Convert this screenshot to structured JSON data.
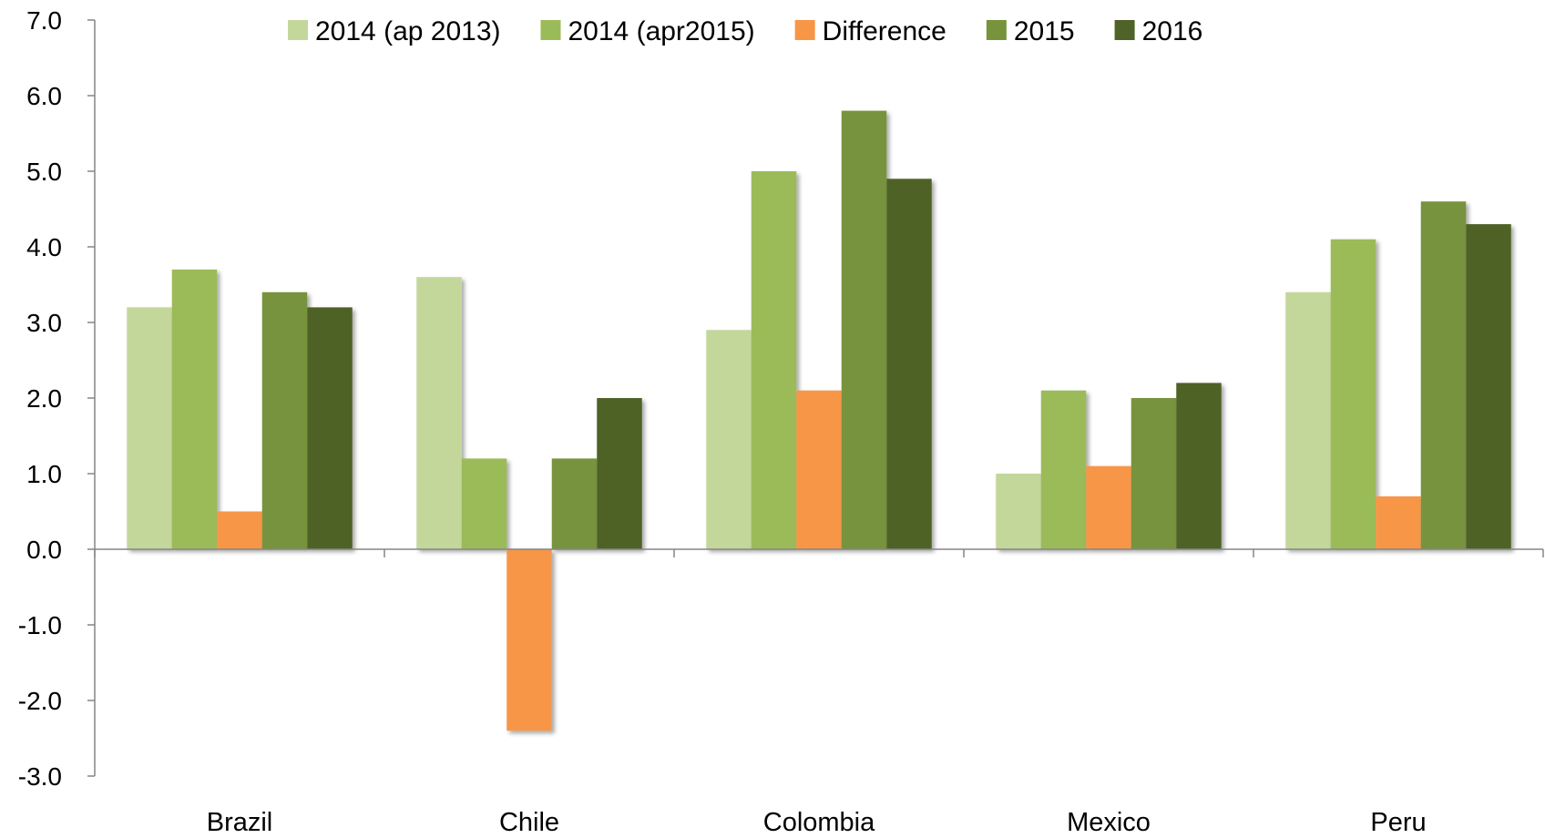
{
  "chart_data": {
    "type": "bar",
    "title": "",
    "xlabel": "",
    "ylabel": "",
    "ylim": [
      -3.0,
      7.0
    ],
    "y_ticks": [
      "7.0",
      "6.0",
      "5.0",
      "4.0",
      "3.0",
      "2.0",
      "1.0",
      "0.0",
      "-1.0",
      "-2.0",
      "-3.0"
    ],
    "y_tick_values": [
      7,
      6,
      5,
      4,
      3,
      2,
      1,
      0,
      -1,
      -2,
      -3
    ],
    "grid": false,
    "legend_position": "top",
    "categories": [
      "Brazil",
      "Chile",
      "Colombia",
      "Mexico",
      "Peru"
    ],
    "series": [
      {
        "name": "2014 (ap 2013)",
        "color": "#c4d79b",
        "values": [
          3.2,
          3.6,
          2.9,
          1.0,
          3.4
        ]
      },
      {
        "name": "2014 (apr2015)",
        "color": "#9bbb59",
        "values": [
          3.7,
          1.2,
          5.0,
          2.1,
          4.1
        ]
      },
      {
        "name": "Difference",
        "color": "#f79646",
        "values": [
          0.5,
          -2.4,
          2.1,
          1.1,
          0.7
        ]
      },
      {
        "name": "2015",
        "color": "#77933c",
        "values": [
          3.4,
          1.2,
          5.8,
          2.0,
          4.6
        ]
      },
      {
        "name": "2016",
        "color": "#4f6228",
        "values": [
          3.2,
          2.0,
          4.9,
          2.2,
          4.3
        ]
      }
    ]
  }
}
